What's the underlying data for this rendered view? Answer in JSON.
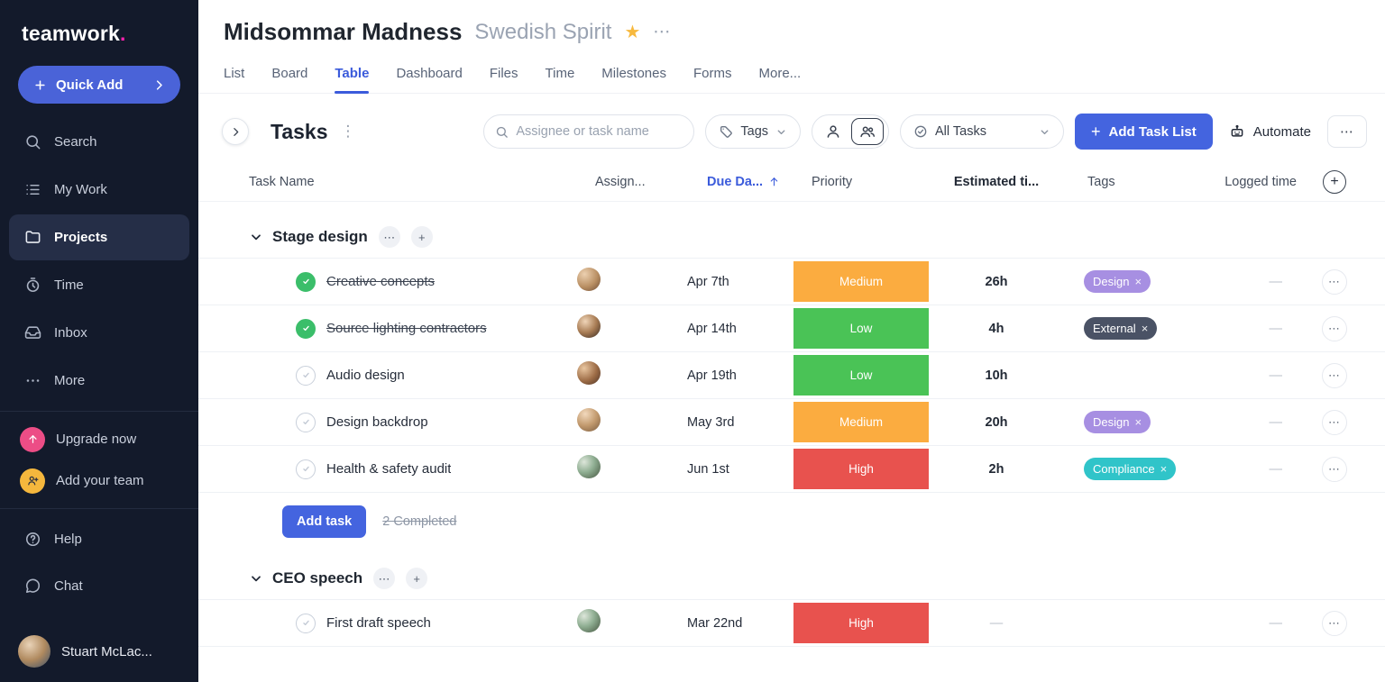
{
  "sidebar": {
    "logo_text": "teamwork",
    "logo_dot": ".",
    "quick_add_label": "Quick Add",
    "items": [
      {
        "label": "Search",
        "icon": "search"
      },
      {
        "label": "My Work",
        "icon": "my-work"
      },
      {
        "label": "Projects",
        "icon": "projects",
        "active": true
      },
      {
        "label": "Time",
        "icon": "time"
      },
      {
        "label": "Inbox",
        "icon": "inbox"
      },
      {
        "label": "More",
        "icon": "more"
      }
    ],
    "promos": [
      {
        "label": "Upgrade now",
        "icon": "upgrade",
        "circle_color": "#EC4D86"
      },
      {
        "label": "Add your team",
        "icon": "add-team",
        "circle_color": "#F5B73D"
      }
    ],
    "footer_items": [
      {
        "label": "Help",
        "icon": "help"
      },
      {
        "label": "Chat",
        "icon": "chat"
      }
    ],
    "user_name": "Stuart McLac..."
  },
  "header": {
    "title": "Midsommar Madness",
    "subtitle": "Swedish Spirit",
    "star_color": "#F7B93E",
    "tabs": [
      "List",
      "Board",
      "Table",
      "Dashboard",
      "Files",
      "Time",
      "Milestones",
      "Forms",
      "More..."
    ],
    "active_tab": "Table"
  },
  "toolbar": {
    "title": "Tasks",
    "search_placeholder": "Assignee or task name",
    "tags_label": "Tags",
    "filter_label": "All Tasks",
    "add_task_list_label": "Add Task List",
    "automate_label": "Automate"
  },
  "table": {
    "columns": [
      {
        "label": "Task Name",
        "key": "task"
      },
      {
        "label": "Assign...",
        "key": "assignee"
      },
      {
        "label": "Due Da...",
        "key": "due",
        "sorted": "asc"
      },
      {
        "label": "Priority",
        "key": "priority"
      },
      {
        "label": "Estimated ti...",
        "key": "estimated"
      },
      {
        "label": "Tags",
        "key": "tags"
      },
      {
        "label": "Logged time",
        "key": "logged"
      }
    ],
    "priority_colors": {
      "Medium": "#FBAC40",
      "Low": "#4AC356",
      "High": "#E8524E"
    },
    "tag_colors": {
      "Design": "#A78FE2",
      "External": "#4A5265",
      "Compliance": "#30C4C9"
    },
    "groups": [
      {
        "name": "Stage design",
        "tasks": [
          {
            "name": "Creative concepts",
            "completed": true,
            "avatar": 0,
            "due": "Apr 7th",
            "priority": "Medium",
            "estimated": "26h",
            "tag": "Design",
            "logged": "—"
          },
          {
            "name": "Source lighting contractors",
            "completed": true,
            "avatar": 1,
            "due": "Apr 14th",
            "priority": "Low",
            "estimated": "4h",
            "tag": "External",
            "logged": "—"
          },
          {
            "name": "Audio design",
            "completed": false,
            "avatar": 2,
            "due": "Apr 19th",
            "priority": "Low",
            "estimated": "10h",
            "tag": null,
            "logged": "—"
          },
          {
            "name": "Design backdrop",
            "completed": false,
            "avatar": 3,
            "due": "May 3rd",
            "priority": "Medium",
            "estimated": "20h",
            "tag": "Design",
            "logged": "—"
          },
          {
            "name": "Health & safety audit",
            "completed": false,
            "avatar": 4,
            "due": "Jun 1st",
            "priority": "High",
            "estimated": "2h",
            "tag": "Compliance",
            "logged": "—"
          }
        ],
        "footer": {
          "add_task_label": "Add task",
          "completed_note": "2 Completed"
        }
      },
      {
        "name": "CEO speech",
        "tasks": [
          {
            "name": "First draft speech",
            "completed": false,
            "avatar": 4,
            "due": "Mar 22nd",
            "priority": "High",
            "estimated": "—",
            "tag": null,
            "logged": "—"
          }
        ]
      }
    ]
  }
}
